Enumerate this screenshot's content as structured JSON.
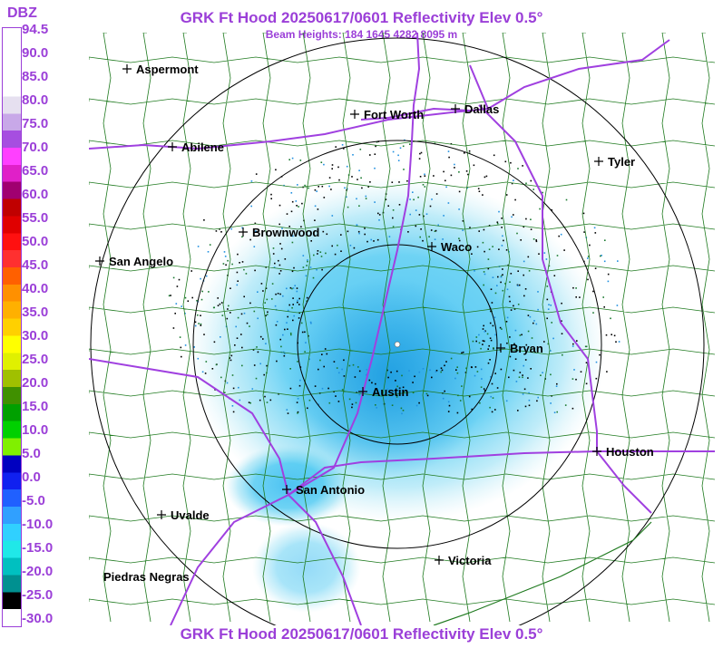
{
  "titles": {
    "top": "GRK Ft Hood 20250617/0601 Reflectivity Elev 0.5°",
    "beam_heights": "Beam Heights: 184 1645 4282 8095 m",
    "bottom": "GRK Ft Hood 20250617/0601 Reflectivity Elev 0.5°"
  },
  "legend": {
    "unit": "DBZ",
    "values": [
      "94.5",
      "90.0",
      "85.0",
      "80.0",
      "75.0",
      "70.0",
      "65.0",
      "60.0",
      "55.0",
      "50.0",
      "45.0",
      "40.0",
      "35.0",
      "30.0",
      "25.0",
      "20.0",
      "15.0",
      "10.0",
      "5.0",
      "0.0",
      "-5.0",
      "-10.0",
      "-15.0",
      "-20.0",
      "-25.0",
      "-30.0"
    ],
    "colors": [
      "#ffffff",
      "#ffffff",
      "#ffffff",
      "#ffffff",
      "#e6e0f0",
      "#c8a8e8",
      "#a64ee0",
      "#ff40ff",
      "#e020c8",
      "#a00070",
      "#c00000",
      "#e00000",
      "#ff1010",
      "#ff3030",
      "#ff6000",
      "#ff9000",
      "#ffb000",
      "#ffd000",
      "#ffff00",
      "#e0f000",
      "#a0c000",
      "#409000",
      "#00a000",
      "#00d000",
      "#80f000",
      "#0000c0",
      "#1020f0",
      "#2060ff",
      "#30a0ff",
      "#30d0ff",
      "#20e8e8",
      "#00c0c0",
      "#009090",
      "#000000",
      "#ffffff"
    ]
  },
  "cities": [
    {
      "name": "Aspermont"
    },
    {
      "name": "Fort Worth"
    },
    {
      "name": "Dallas"
    },
    {
      "name": "Abilene"
    },
    {
      "name": "Tyler"
    },
    {
      "name": "Brownwood"
    },
    {
      "name": "Waco"
    },
    {
      "name": "San Angelo"
    },
    {
      "name": "Bryan"
    },
    {
      "name": "Austin"
    },
    {
      "name": "Houston"
    },
    {
      "name": "San Antonio"
    },
    {
      "name": "Uvalde"
    },
    {
      "name": "Victoria"
    },
    {
      "name": "Piedras Negras"
    }
  ]
}
